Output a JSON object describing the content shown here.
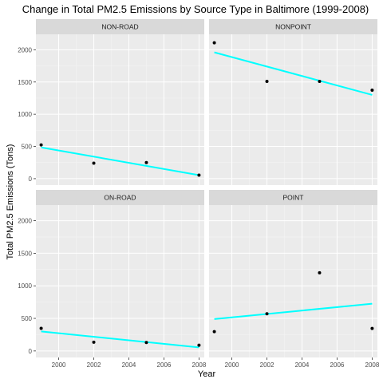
{
  "chart_data": {
    "type": "scatter",
    "title": "Change in Total PM2.5 Emissions by Source Type in Baltimore (1999-2008)",
    "xlabel": "Year",
    "ylabel": "Total PM2.5 Emissions (Tons)",
    "xlim": [
      1998.7,
      2008.3
    ],
    "ylim": [
      -100,
      2240
    ],
    "x_ticks": [
      2000,
      2002,
      2004,
      2006,
      2008
    ],
    "x_tick_labels": [
      "2000",
      "2002",
      "2004",
      "2006",
      "2008"
    ],
    "y_ticks": [
      0,
      500,
      1000,
      1500,
      2000
    ],
    "y_tick_labels": [
      "0",
      "500",
      "1000",
      "1500",
      "2000"
    ],
    "grid": true,
    "facets": [
      {
        "label": "NON-ROAD",
        "x": [
          1999,
          2002,
          2005,
          2008
        ],
        "y": [
          523,
          241,
          249,
          55
        ],
        "trend": {
          "x": [
            1999,
            2008
          ],
          "y": [
            485,
            55
          ]
        }
      },
      {
        "label": "NONPOINT",
        "x": [
          1999,
          2002,
          2005,
          2008
        ],
        "y": [
          2108,
          1510,
          1510,
          1373
        ],
        "trend": {
          "x": [
            1999,
            2008
          ],
          "y": [
            1960,
            1300
          ]
        }
      },
      {
        "label": "ON-ROAD",
        "x": [
          1999,
          2002,
          2005,
          2008
        ],
        "y": [
          347,
          134,
          130,
          88
        ],
        "trend": {
          "x": [
            1999,
            2008
          ],
          "y": [
            300,
            55
          ]
        }
      },
      {
        "label": "POINT",
        "x": [
          1999,
          2002,
          2005,
          2008
        ],
        "y": [
          297,
          570,
          1200,
          345
        ],
        "trend": {
          "x": [
            1999,
            2008
          ],
          "y": [
            490,
            725
          ]
        }
      }
    ],
    "colors": {
      "points": "#000000",
      "trend_line": "#00FFFF",
      "panel_bg": "#EBEBEB",
      "strip_bg": "#D9D9D9",
      "grid_major": "#FFFFFF"
    }
  }
}
